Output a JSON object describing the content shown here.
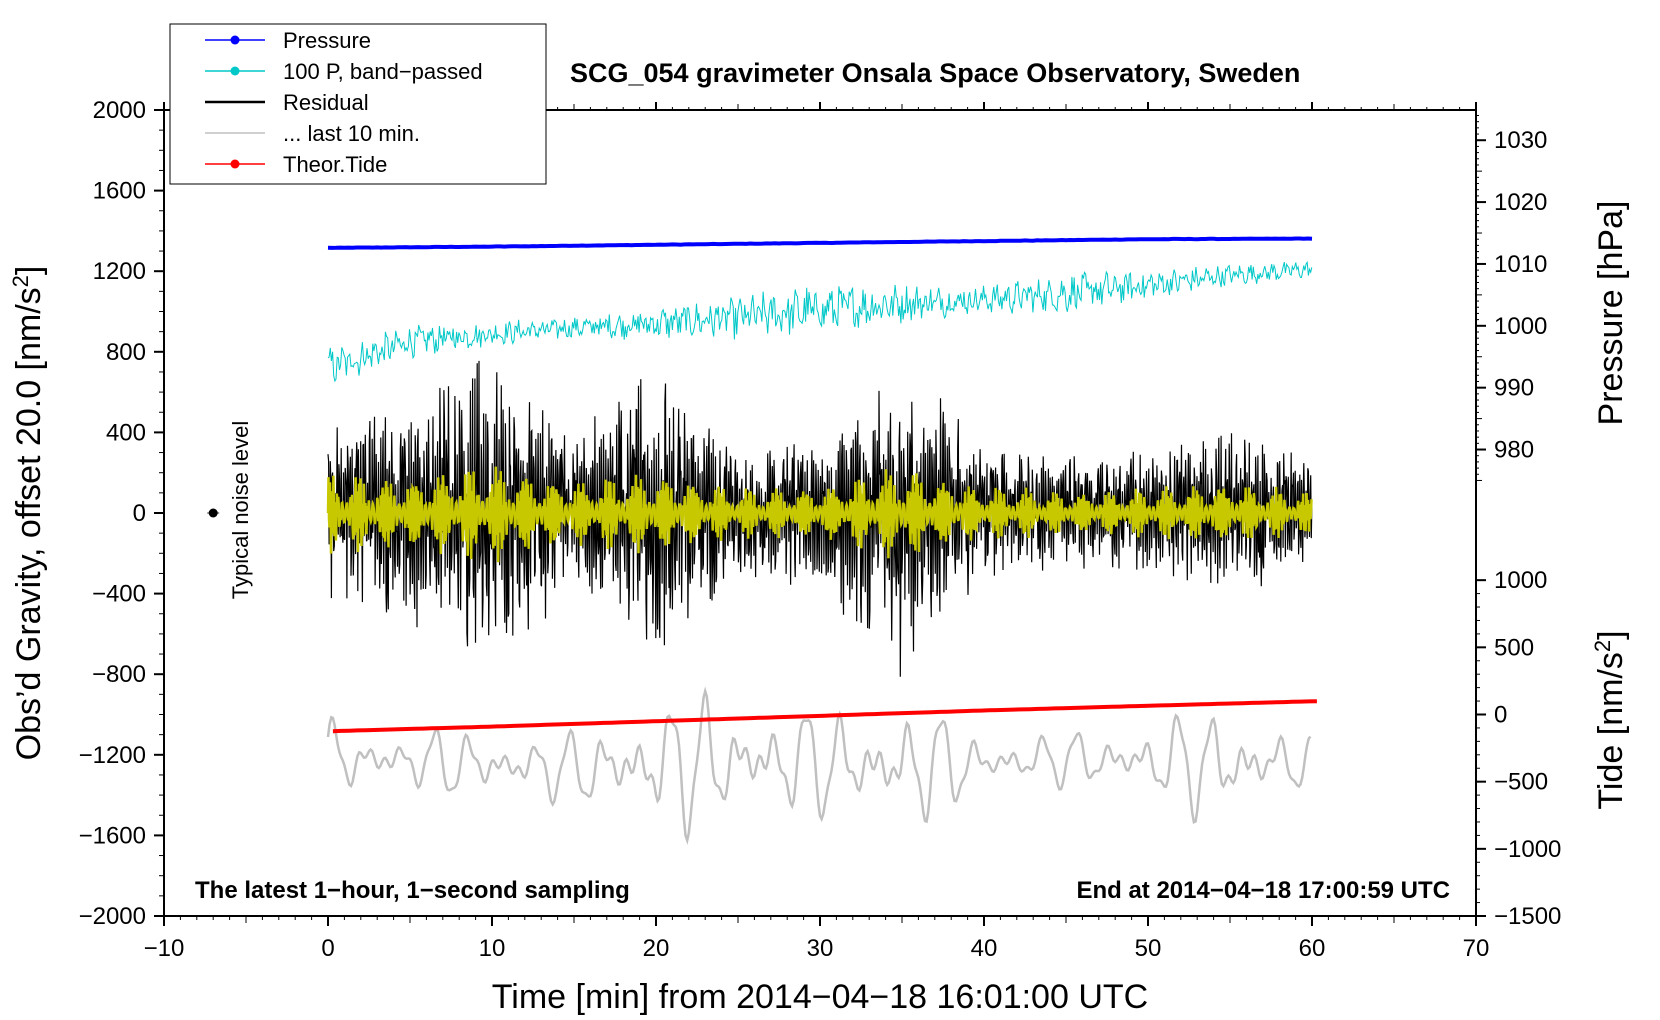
{
  "chart_data": {
    "type": "line",
    "title": "SCG_054 gravimeter Onsala Space Observatory, Sweden",
    "xlabel": "Time [min] from 2014−04−18 16:01:00 UTC",
    "ylabel_left": "Obs’d Gravity, offset 20.0 [nm/s",
    "ylabel_left_sup": "2",
    "ylabel_left_close": "]",
    "ylabel_right_top": "Pressure [hPa]",
    "ylabel_right_bottom": "Tide [nm/s",
    "ylabel_right_bottom_sup": "2",
    "ylabel_right_bottom_close": "]",
    "xlim": [
      -10,
      70
    ],
    "ylim_left": [
      -2000,
      2000
    ],
    "x_ticks": [
      "−10",
      "0",
      "10",
      "20",
      "30",
      "40",
      "50",
      "60",
      "70"
    ],
    "x_tick_values": [
      -10,
      0,
      10,
      20,
      30,
      40,
      50,
      60,
      70
    ],
    "y_left_ticks": [
      "2000",
      "1600",
      "1200",
      "800",
      "400",
      "0",
      "−400",
      "−800",
      "−1200",
      "−1600",
      "−2000"
    ],
    "y_left_tick_values": [
      2000,
      1600,
      1200,
      800,
      400,
      0,
      -400,
      -800,
      -1200,
      -1600,
      -2000
    ],
    "pressure_axis": {
      "ticks": [
        "1030",
        "1020",
        "1010",
        "1000",
        "990",
        "980"
      ],
      "tick_values": [
        1030,
        1020,
        1010,
        1000,
        990,
        980
      ],
      "gravity_at_1030": 1850,
      "gravity_per_hPa": 30.7
    },
    "tide_axis": {
      "ticks": [
        "1000",
        "500",
        "0",
        "−500",
        "−1000",
        "−1500"
      ],
      "tick_values": [
        1000,
        500,
        0,
        -500,
        -1000,
        -1500
      ],
      "gravity_at_0": -1000,
      "gravity_per_unit": 0.6667
    },
    "annotations": {
      "left": "The latest 1−hour, 1−second sampling",
      "right": "End at 2014−04−18 17:00:59 UTC",
      "noise_label": "Typical noise level",
      "noise_point": {
        "x": -7,
        "y": 0
      }
    },
    "legend": [
      {
        "name": "Pressure",
        "color": "#0000ff",
        "marker": true
      },
      {
        "name": "100 P, band−passed",
        "color": "#00c8c8",
        "marker": true
      },
      {
        "name": "Residual",
        "color": "#000000",
        "marker": false
      },
      {
        "name": "... last 10 min.",
        "color": "#c0c0c0",
        "marker": false
      },
      {
        "name": "Theor.Tide",
        "color": "#ff0000",
        "marker": true
      }
    ],
    "series": [
      {
        "name": "Pressure",
        "color": "#0000ff",
        "x": [
          0,
          10,
          20,
          30,
          40,
          50,
          60
        ],
        "y": [
          1012.6,
          1012.8,
          1013.1,
          1013.4,
          1013.7,
          1014.0,
          1014.1
        ]
      },
      {
        "name": "100 P, band−passed",
        "color": "#00c8c8",
        "x": [
          0,
          5,
          10,
          15,
          20,
          25,
          30,
          35,
          40,
          45,
          50,
          55,
          60
        ],
        "y": [
          720,
          850,
          890,
          920,
          940,
          970,
          1010,
          1040,
          1060,
          1090,
          1130,
          1180,
          1210
        ],
        "noise_amplitude": [
          110,
          90,
          70,
          60,
          90,
          120,
          140,
          110,
          80,
          110,
          90,
          60,
          50
        ]
      },
      {
        "name": "Residual",
        "color": "#000000",
        "x": [
          0,
          5,
          10,
          15,
          20,
          25,
          30,
          35,
          40,
          45,
          50,
          55,
          60
        ],
        "envelope": [
          420,
          520,
          800,
          380,
          720,
          300,
          380,
          800,
          300,
          280,
          300,
          400,
          300
        ]
      },
      {
        "name": "... last 10 min.",
        "color": "#c0c0c0",
        "x": [
          0,
          5,
          10,
          15,
          20,
          25,
          30,
          35,
          40,
          45,
          50,
          55,
          60
        ],
        "y": [
          -1220,
          -1230,
          -1250,
          -1270,
          -1250,
          -1230,
          -1240,
          -1260,
          -1240,
          -1220,
          -1230,
          -1250,
          -1230
        ],
        "envelope": [
          200,
          150,
          180,
          170,
          350,
          320,
          260,
          330,
          150,
          130,
          200,
          300,
          120
        ]
      },
      {
        "name": "Theor.Tide",
        "color": "#ff0000",
        "x": [
          0,
          10,
          20,
          30,
          40,
          50,
          60.5
        ],
        "y": [
          -125,
          -90,
          -50,
          -10,
          30,
          65,
          100
        ]
      },
      {
        "name": "Residual smoothed",
        "color": "#c8c800",
        "x": [
          0,
          5,
          10,
          15,
          20,
          25,
          30,
          35,
          40,
          45,
          50,
          55,
          60
        ],
        "envelope": [
          160,
          150,
          200,
          130,
          170,
          100,
          110,
          190,
          110,
          90,
          100,
          130,
          80
        ]
      }
    ]
  }
}
